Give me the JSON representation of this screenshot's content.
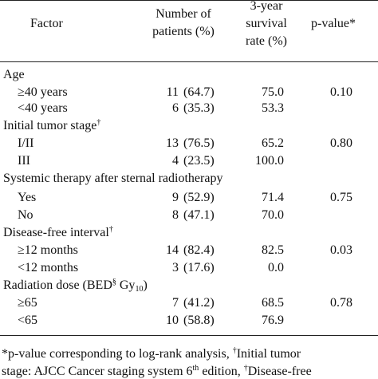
{
  "header": {
    "factor": "Factor",
    "patients_l1": "Number of",
    "patients_l2": "patients (%)",
    "survival_l1": "3-year",
    "survival_l2": "survival",
    "survival_l3": "rate (%)",
    "pvalue": "p-value*"
  },
  "groups": {
    "age": "Age",
    "stage": "Initial tumor stage",
    "stage_mark": "†",
    "systemic": "Systemic therapy after sternal radiotherapy",
    "dfi": "Disease-free interval",
    "dfi_mark": "†",
    "rad_pre": "Radiation dose (BED",
    "rad_mark": "§",
    "rad_gy": " Gy",
    "rad_sub": "10",
    "rad_post": ")"
  },
  "rows": [
    {
      "label": "≥40 years",
      "n": "11",
      "pct": "(64.7)",
      "surv": "75.0",
      "p": "0.10"
    },
    {
      "label": "<40 years",
      "n": "6",
      "pct": "(35.3)",
      "surv": "53.3",
      "p": ""
    },
    {
      "label": "I/II",
      "n": "13",
      "pct": "(76.5)",
      "surv": "65.2",
      "p": "0.80"
    },
    {
      "label": "III",
      "n": "4",
      "pct": "(23.5)",
      "surv": "100.0",
      "p": ""
    },
    {
      "label": "Yes",
      "n": "9",
      "pct": "(52.9)",
      "surv": "71.4",
      "p": "0.75"
    },
    {
      "label": "No",
      "n": "8",
      "pct": "(47.1)",
      "surv": "70.0",
      "p": ""
    },
    {
      "label": "≥12 months",
      "n": "14",
      "pct": "(82.4)",
      "surv": "82.5",
      "p": "0.03"
    },
    {
      "label": "<12 months",
      "n": "3",
      "pct": "(17.6)",
      "surv": "0.0",
      "p": ""
    },
    {
      "label": "≥65",
      "n": "7",
      "pct": "(41.2)",
      "surv": "68.5",
      "p": "0.78"
    },
    {
      "label": "<65",
      "n": "10",
      "pct": "(58.8)",
      "surv": "76.9",
      "p": ""
    }
  ],
  "footnote": {
    "l1_a": "*p-value corresponding to log-rank analysis, ",
    "l1_mark": "†",
    "l1_b": "Initial tumor",
    "l2_a": "stage: AJCC Cancer staging system 6",
    "l2_sup": "th",
    "l2_b": " edition, ",
    "l2_mark": "†",
    "l2_c": "Disease-free"
  }
}
